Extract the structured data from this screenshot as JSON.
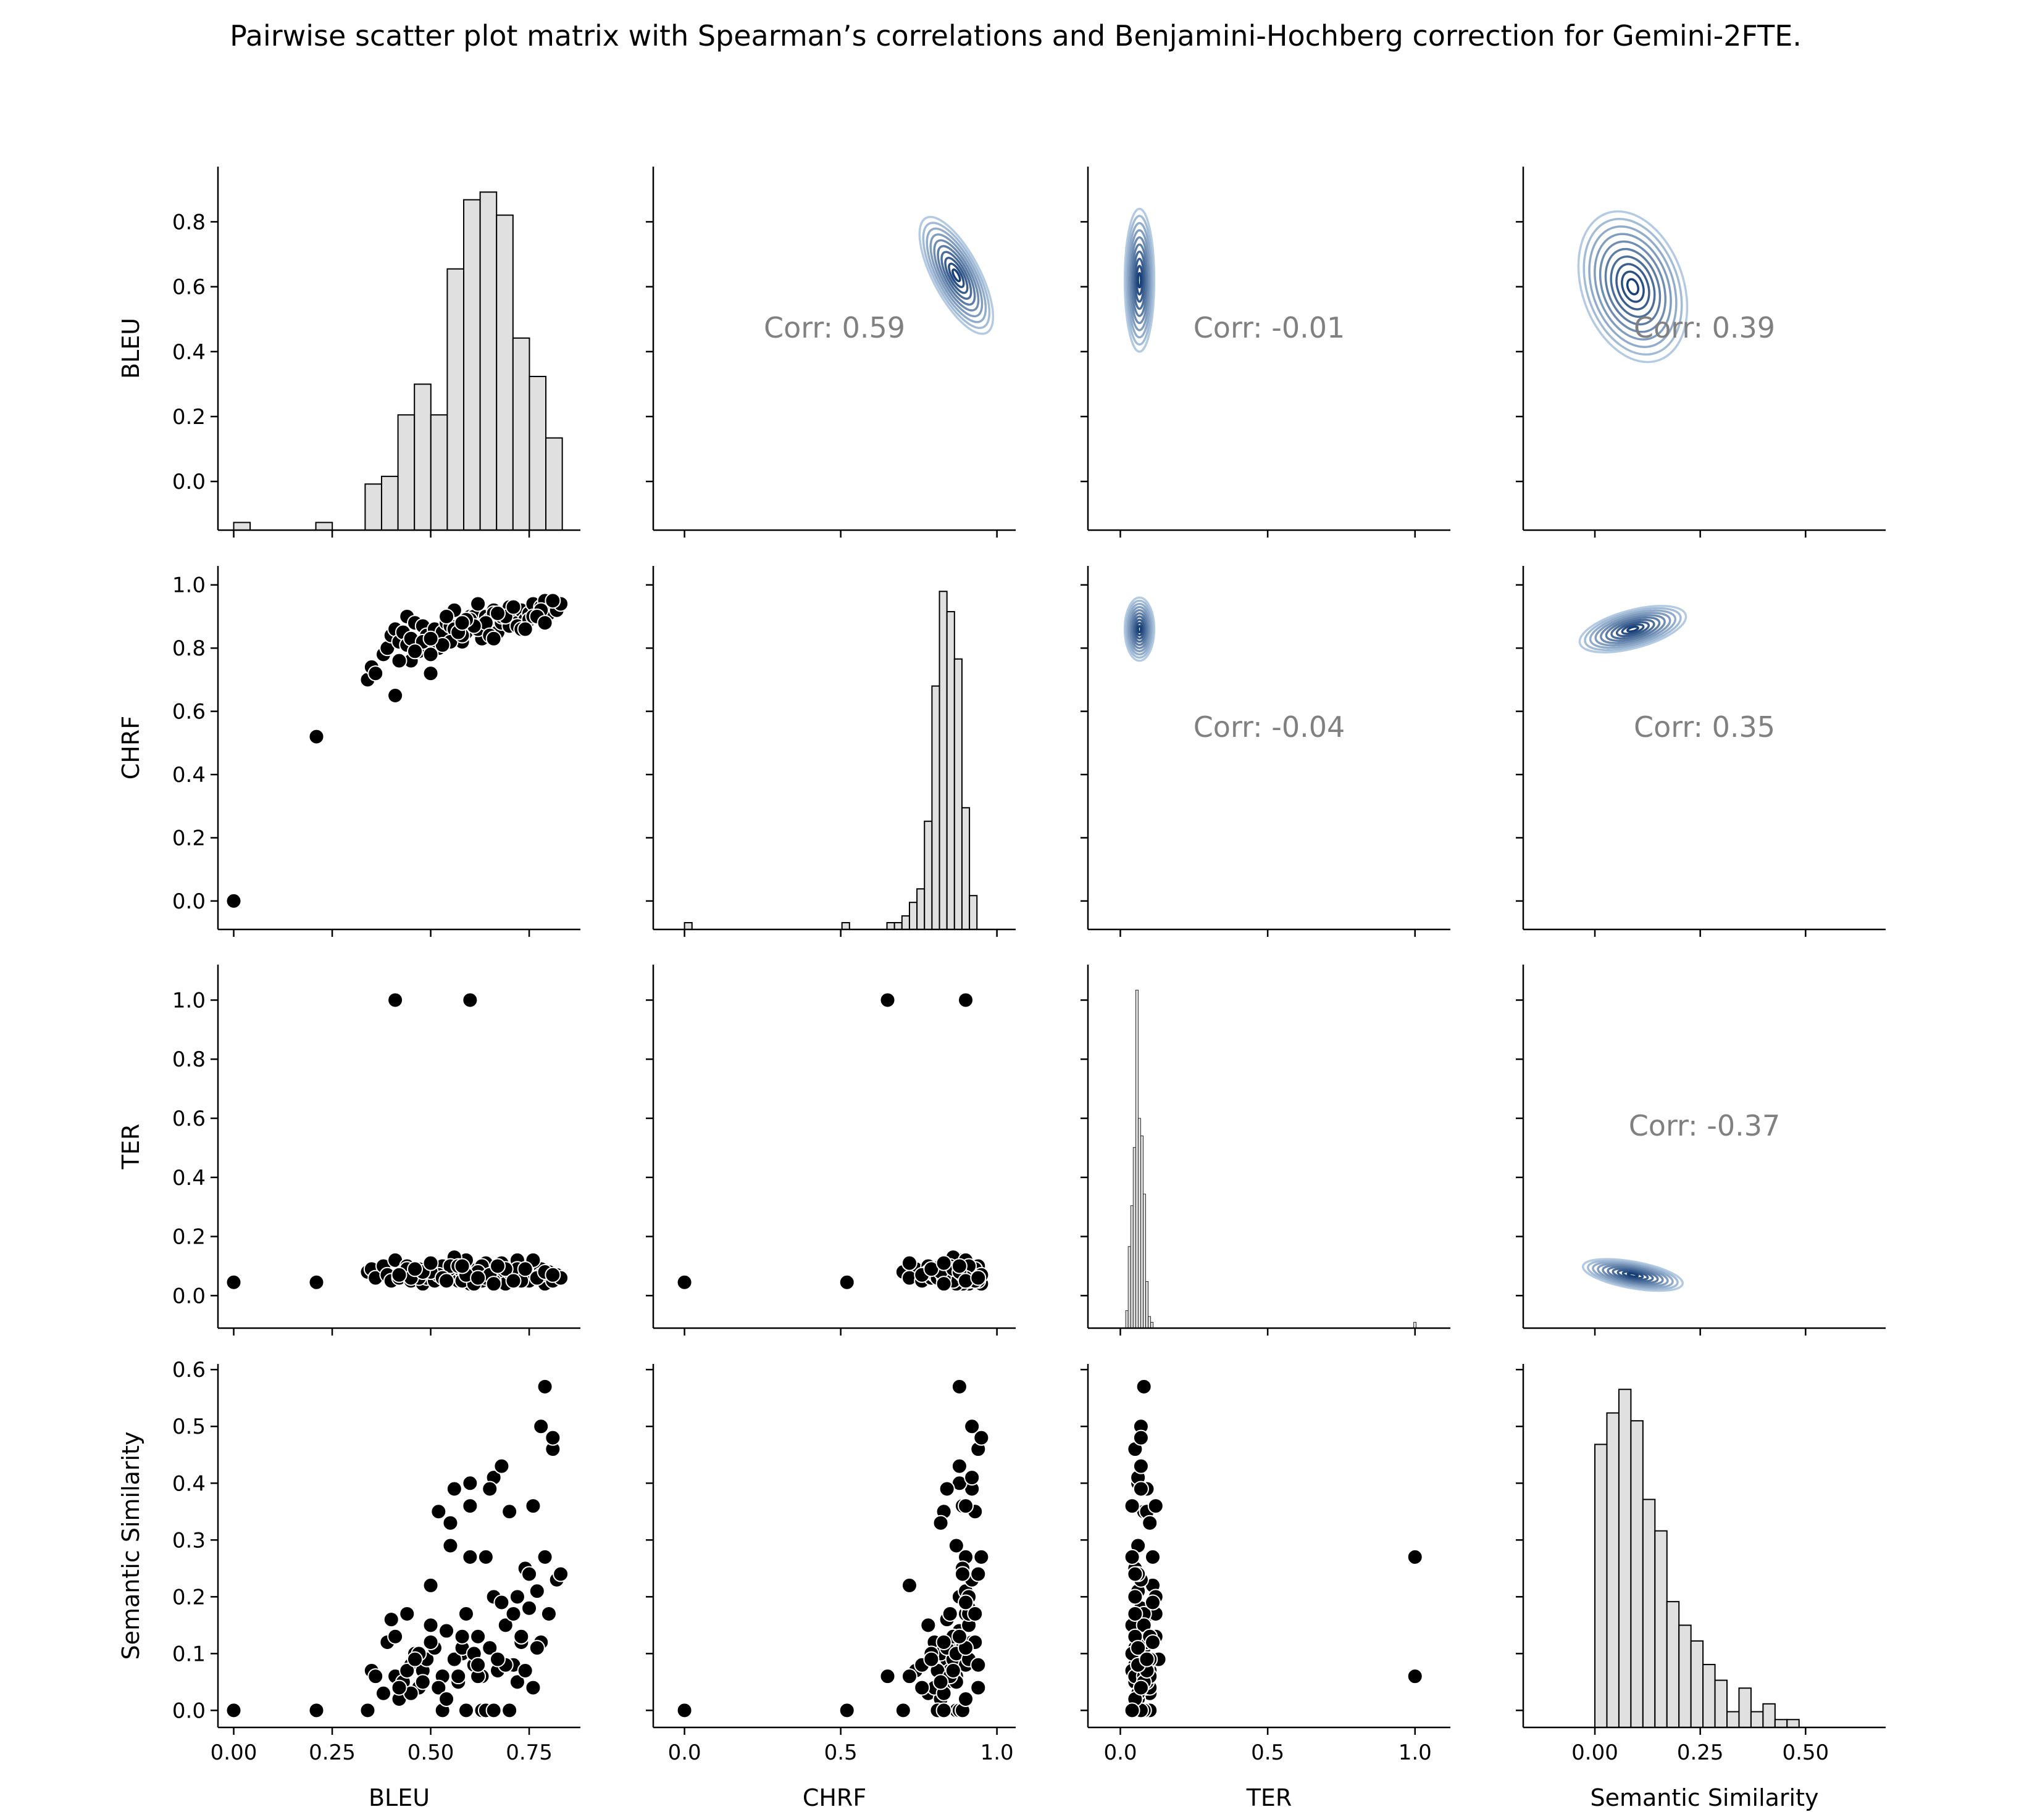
{
  "title": "Pairwise scatter plot matrix with Spearman’s correlations and Benjamini-Hochberg correction for Gemini-2FTE.",
  "colors": {
    "hist_fill": "#e0e0e0",
    "hist_edge": "#000000",
    "scatter_fill": "#000000",
    "scatter_edge": "#ffffff",
    "kde_palette": "Blues",
    "corr_text": "#808080"
  },
  "chart_data": {
    "type": "scatter",
    "variables": [
      "BLEU",
      "CHRF",
      "TER",
      "Semantic Similarity"
    ],
    "axes": {
      "BLEU": {
        "lim": [
          -0.15,
          0.97
        ],
        "ticks_y": [
          "0.0",
          "0.2",
          "0.4",
          "0.6",
          "0.8"
        ],
        "tick_vals_y": [
          0,
          0.2,
          0.4,
          0.6,
          0.8
        ],
        "xlim": [
          -0.04,
          0.88
        ],
        "ticks_x": [
          "0.00",
          "0.25",
          "0.50",
          "0.75"
        ],
        "tick_vals_x": [
          0,
          0.25,
          0.5,
          0.75
        ]
      },
      "CHRF": {
        "lim": [
          -0.09,
          1.06
        ],
        "ticks_y": [
          "0.0",
          "0.2",
          "0.4",
          "0.6",
          "0.8",
          "1.0"
        ],
        "tick_vals_y": [
          0,
          0.2,
          0.4,
          0.6,
          0.8,
          1.0
        ],
        "xlim": [
          -0.1,
          1.06
        ],
        "ticks_x": [
          "0.0",
          "0.5",
          "1.0"
        ],
        "tick_vals_x": [
          0,
          0.5,
          1.0
        ]
      },
      "TER": {
        "lim": [
          -0.11,
          1.12
        ],
        "ticks_y": [
          "0.0",
          "0.2",
          "0.4",
          "0.6",
          "0.8",
          "1.0"
        ],
        "tick_vals_y": [
          0,
          0.2,
          0.4,
          0.6,
          0.8,
          1.0
        ],
        "xlim": [
          -0.11,
          1.12
        ],
        "ticks_x": [
          "0.0",
          "0.5",
          "1.0"
        ],
        "tick_vals_x": [
          0,
          0.5,
          1.0
        ]
      },
      "Semantic Similarity": {
        "lim": [
          -0.03,
          0.61
        ],
        "ticks_y": [
          "0.0",
          "0.1",
          "0.2",
          "0.3",
          "0.4",
          "0.5",
          "0.6"
        ],
        "tick_vals_y": [
          0,
          0.1,
          0.2,
          0.3,
          0.4,
          0.5,
          0.6
        ],
        "xlim": [
          -0.17,
          0.69
        ],
        "ticks_x": [
          "0.00",
          "0.25",
          "0.50"
        ],
        "tick_vals_x": [
          0,
          0.25,
          0.5
        ]
      }
    },
    "histograms": [
      {
        "var": "BLEU",
        "edges_start": 0,
        "bin_width": 0.0417,
        "counts": [
          1,
          0,
          0,
          0,
          0,
          1,
          0,
          0,
          6,
          7,
          15,
          19,
          15,
          34,
          43,
          44,
          41,
          25,
          20,
          12
        ]
      },
      {
        "var": "CHRF",
        "edges_start": 0,
        "bin_width": 0.024,
        "counts": [
          1,
          0,
          0,
          0,
          0,
          0,
          0,
          0,
          0,
          0,
          0,
          0,
          0,
          0,
          0,
          0,
          0,
          0,
          0,
          0,
          0,
          1,
          0,
          0,
          0,
          0,
          0,
          1,
          1,
          2,
          4,
          6,
          16,
          36,
          50,
          47,
          40,
          18,
          5
        ]
      },
      {
        "var": "TER",
        "edges_start": 0.018,
        "bin_width": 0.0085,
        "counts": [
          3,
          14,
          21,
          31,
          58,
          36,
          33,
          23,
          8,
          2,
          1,
          0,
          0,
          0,
          0,
          0,
          0,
          0,
          0,
          0,
          0,
          0,
          0,
          0,
          0,
          0,
          0,
          0,
          0,
          0,
          0,
          0,
          0,
          0,
          0,
          0,
          0,
          0,
          0,
          0,
          0,
          0,
          0,
          0,
          0,
          0,
          0,
          0,
          0,
          0,
          0,
          0,
          0,
          0,
          0,
          0,
          0,
          0,
          0,
          0,
          0,
          0,
          0,
          0,
          0,
          0,
          0,
          0,
          0,
          0,
          0,
          0,
          0,
          0,
          0,
          0,
          0,
          0,
          0,
          0,
          0,
          0,
          0,
          0,
          0,
          0,
          0,
          0,
          0,
          0,
          0,
          0,
          0,
          0,
          0,
          0,
          0,
          0,
          0,
          0,
          0,
          0,
          0,
          0,
          0,
          0,
          0,
          0,
          0,
          0,
          0,
          0,
          0,
          0,
          0,
          1
        ]
      },
      {
        "var": "Semantic Similarity",
        "edges_start": 0,
        "bin_width": 0.0285,
        "counts": [
          36,
          40,
          43,
          39,
          29,
          25,
          16,
          13,
          11,
          8,
          6,
          2,
          5,
          2,
          3,
          1,
          1,
          0,
          0,
          0
        ]
      }
    ],
    "correlations": [
      {
        "row": "BLEU",
        "col": "CHRF",
        "label": "Corr: 0.59"
      },
      {
        "row": "BLEU",
        "col": "TER",
        "label": "Corr: -0.01"
      },
      {
        "row": "BLEU",
        "col": "Semantic Similarity",
        "label": "Corr: 0.39"
      },
      {
        "row": "CHRF",
        "col": "TER",
        "label": "Corr: -0.04"
      },
      {
        "row": "CHRF",
        "col": "Semantic Similarity",
        "label": "Corr: 0.35"
      },
      {
        "row": "TER",
        "col": "Semantic Similarity",
        "label": "Corr: -0.37"
      }
    ],
    "kde": [
      {
        "row": "BLEU",
        "col": "CHRF",
        "center": [
          0.87,
          0.635
        ],
        "spread": [
          0.075,
          0.2
        ],
        "rho": 0.6,
        "levels": 10
      },
      {
        "row": "BLEU",
        "col": "TER",
        "center": [
          0.065,
          0.62
        ],
        "spread": [
          0.05,
          0.22
        ],
        "rho": 0.0,
        "levels": 10
      },
      {
        "row": "BLEU",
        "col": "Semantic Similarity",
        "center": [
          0.09,
          0.6
        ],
        "spread": [
          0.12,
          0.24
        ],
        "rho": 0.4,
        "levels": 10
      },
      {
        "row": "CHRF",
        "col": "TER",
        "center": [
          0.065,
          0.86
        ],
        "spread": [
          0.05,
          0.1
        ],
        "rho": 0.0,
        "levels": 10
      },
      {
        "row": "CHRF",
        "col": "Semantic Similarity",
        "center": [
          0.09,
          0.86
        ],
        "spread": [
          0.13,
          0.06
        ],
        "rho": 0.3,
        "levels": 10
      },
      {
        "row": "TER",
        "col": "Semantic Similarity",
        "center": [
          0.09,
          0.07
        ],
        "spread": [
          0.12,
          0.045
        ],
        "rho": -0.2,
        "levels": 10
      }
    ],
    "points": {
      "BLEU": [
        0.0,
        0.21,
        0.41,
        0.6,
        0.34,
        0.35,
        0.36,
        0.38,
        0.39,
        0.4,
        0.41,
        0.42,
        0.43,
        0.44,
        0.45,
        0.46,
        0.47,
        0.48,
        0.49,
        0.5,
        0.51,
        0.52,
        0.53,
        0.54,
        0.55,
        0.56,
        0.57,
        0.58,
        0.59,
        0.6,
        0.61,
        0.62,
        0.63,
        0.64,
        0.65,
        0.66,
        0.67,
        0.68,
        0.69,
        0.7,
        0.71,
        0.72,
        0.73,
        0.74,
        0.75,
        0.76,
        0.77,
        0.78,
        0.79,
        0.8,
        0.81,
        0.82,
        0.83,
        0.56,
        0.6,
        0.63,
        0.66,
        0.7,
        0.44,
        0.47,
        0.52,
        0.55,
        0.58,
        0.62,
        0.64,
        0.68,
        0.72,
        0.75,
        0.78,
        0.5,
        0.53,
        0.57,
        0.61,
        0.65,
        0.69,
        0.73,
        0.76,
        0.45,
        0.48,
        0.59,
        0.67,
        0.71,
        0.74,
        0.77,
        0.79,
        0.81,
        0.54,
        0.58,
        0.62,
        0.66,
        0.42,
        0.46,
        0.5
      ],
      "CHRF": [
        0.0,
        0.52,
        0.65,
        0.9,
        0.7,
        0.74,
        0.72,
        0.78,
        0.8,
        0.84,
        0.86,
        0.82,
        0.85,
        0.9,
        0.76,
        0.88,
        0.8,
        0.87,
        0.84,
        0.72,
        0.86,
        0.83,
        0.85,
        0.88,
        0.87,
        0.92,
        0.84,
        0.82,
        0.85,
        0.88,
        0.9,
        0.86,
        0.87,
        0.9,
        0.89,
        0.92,
        0.85,
        0.88,
        0.91,
        0.93,
        0.9,
        0.88,
        0.92,
        0.89,
        0.91,
        0.94,
        0.9,
        0.93,
        0.95,
        0.91,
        0.94,
        0.92,
        0.94,
        0.86,
        0.89,
        0.83,
        0.91,
        0.87,
        0.81,
        0.79,
        0.8,
        0.82,
        0.84,
        0.86,
        0.88,
        0.9,
        0.87,
        0.89,
        0.92,
        0.78,
        0.81,
        0.85,
        0.87,
        0.84,
        0.9,
        0.86,
        0.9,
        0.83,
        0.82,
        0.89,
        0.91,
        0.93,
        0.86,
        0.9,
        0.88,
        0.95,
        0.9,
        0.88,
        0.94,
        0.83,
        0.76,
        0.79,
        0.83
      ],
      "TER": [
        0.045,
        0.045,
        1.0,
        1.0,
        0.08,
        0.09,
        0.06,
        0.1,
        0.07,
        0.05,
        0.12,
        0.06,
        0.08,
        0.1,
        0.05,
        0.07,
        0.09,
        0.04,
        0.06,
        0.11,
        0.05,
        0.08,
        0.1,
        0.07,
        0.06,
        0.09,
        0.05,
        0.08,
        0.12,
        0.06,
        0.07,
        0.09,
        0.05,
        0.11,
        0.08,
        0.06,
        0.1,
        0.07,
        0.04,
        0.09,
        0.06,
        0.12,
        0.08,
        0.05,
        0.07,
        0.1,
        0.06,
        0.09,
        0.04,
        0.08,
        0.05,
        0.07,
        0.06,
        0.13,
        0.04,
        0.1,
        0.05,
        0.08,
        0.09,
        0.06,
        0.07,
        0.1,
        0.05,
        0.08,
        0.06,
        0.11,
        0.09,
        0.05,
        0.07,
        0.08,
        0.06,
        0.1,
        0.04,
        0.07,
        0.09,
        0.05,
        0.12,
        0.06,
        0.08,
        0.07,
        0.1,
        0.05,
        0.09,
        0.06,
        0.08,
        0.07,
        0.05,
        0.1,
        0.06,
        0.04,
        0.07,
        0.09,
        0.11
      ],
      "Semantic Similarity": [
        0.0,
        0.0,
        0.06,
        0.27,
        0.0,
        0.07,
        0.06,
        0.03,
        0.12,
        0.16,
        0.13,
        0.02,
        0.05,
        0.17,
        0.08,
        0.1,
        0.04,
        0.07,
        0.09,
        0.22,
        0.11,
        0.35,
        0.06,
        0.14,
        0.29,
        0.39,
        0.05,
        0.1,
        0.17,
        0.4,
        0.08,
        0.13,
        0.06,
        0.27,
        0.11,
        0.41,
        0.07,
        0.43,
        0.15,
        0.35,
        0.08,
        0.2,
        0.12,
        0.25,
        0.18,
        0.04,
        0.21,
        0.12,
        0.27,
        0.17,
        0.46,
        0.23,
        0.24,
        0.09,
        0.36,
        0.0,
        0.2,
        0.0,
        0.07,
        0.1,
        0.04,
        0.33,
        0.11,
        0.06,
        0.0,
        0.19,
        0.05,
        0.24,
        0.5,
        0.15,
        0.0,
        0.06,
        0.1,
        0.39,
        0.08,
        0.13,
        0.36,
        0.03,
        0.05,
        0.0,
        0.09,
        0.17,
        0.07,
        0.11,
        0.57,
        0.48,
        0.02,
        0.13,
        0.08,
        0.0,
        0.04,
        0.09,
        0.12
      ]
    }
  }
}
